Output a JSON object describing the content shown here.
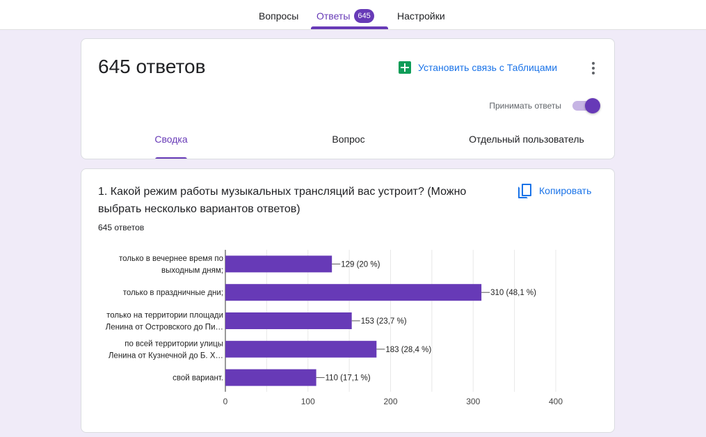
{
  "topnav": {
    "tabs": [
      {
        "label": "Вопросы"
      },
      {
        "label": "Ответы",
        "badge": "645"
      },
      {
        "label": "Настройки"
      }
    ]
  },
  "summary": {
    "title": "645 ответов",
    "sheets_link": "Установить связь с Таблицами",
    "accept_label": "Принимать ответы",
    "accepting": true,
    "subtabs": [
      {
        "label": "Сводка"
      },
      {
        "label": "Вопрос"
      },
      {
        "label": "Отдельный пользователь"
      }
    ]
  },
  "question": {
    "title": "1. Какой режим работы музыкальных трансляций вас устроит? (Можно выбрать несколько вариантов ответов)",
    "copy_label": "Копировать",
    "count": "645 ответов"
  },
  "colors": {
    "accent": "#673ab7",
    "link": "#1a73e8",
    "bar": "#673ab7"
  },
  "chart_data": {
    "type": "bar",
    "orientation": "horizontal",
    "categories": [
      [
        "только в вечернее время по",
        "выходным дням;"
      ],
      [
        "только в праздничные дни;"
      ],
      [
        "только на территории площади",
        "Ленина от Островского до Пи…"
      ],
      [
        "по всей территории улицы",
        "Ленина от Кузнечной до Б. Х…"
      ],
      [
        "свой вариант."
      ]
    ],
    "values": [
      129,
      310,
      153,
      183,
      110
    ],
    "data_labels": [
      "129 (20 %)",
      "310 (48,1 %)",
      "153 (23,7 %)",
      "183 (28,4 %)",
      "110 (17,1 %)"
    ],
    "xlim": [
      0,
      400
    ],
    "xticks": [
      "0",
      "100",
      "200",
      "300",
      "400"
    ],
    "grid": true
  }
}
